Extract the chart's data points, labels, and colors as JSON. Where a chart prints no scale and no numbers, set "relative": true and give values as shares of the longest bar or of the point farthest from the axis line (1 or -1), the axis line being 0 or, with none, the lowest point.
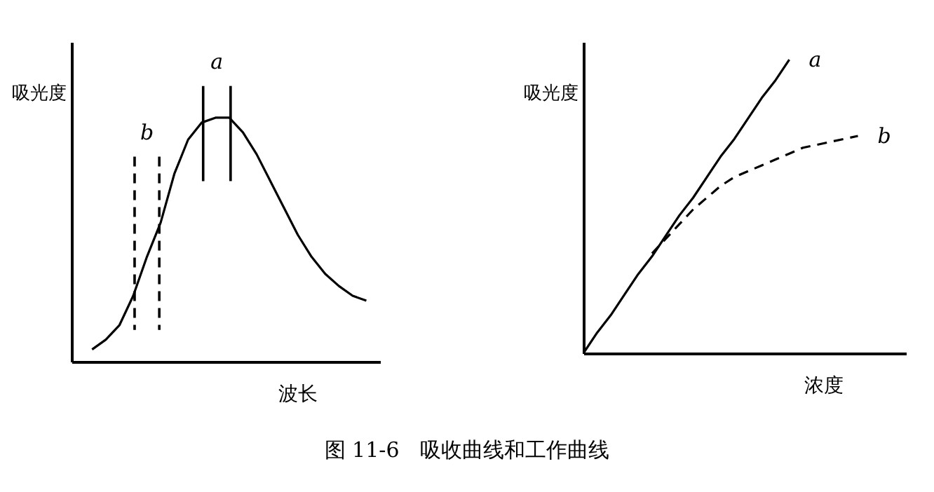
{
  "chart_data": [
    {
      "type": "line",
      "relative": true,
      "tick_labels": false,
      "xlabel": "波长",
      "ylabel": "吸光度",
      "grid": false,
      "categories": [
        null,
        null,
        null,
        null,
        null,
        null,
        null,
        null,
        null,
        null,
        null,
        null,
        null,
        null,
        null,
        null,
        null,
        null,
        null,
        null,
        null
      ],
      "values": [
        0.05,
        0.09,
        0.15,
        0.27,
        0.43,
        0.57,
        0.77,
        0.91,
        0.98,
        1.0,
        1.0,
        0.94,
        0.85,
        0.74,
        0.63,
        0.52,
        0.43,
        0.36,
        0.31,
        0.27,
        0.25
      ],
      "color": "#000000",
      "annotations": [
        "a",
        "b",
        "图 11-6　吸收曲线和工作曲线"
      ]
    },
    {
      "type": "line",
      "relative": true,
      "tick_labels": false,
      "xlabel": "浓度",
      "ylabel": "吸光度",
      "grid": false,
      "categories": [
        null,
        null,
        null,
        null,
        null,
        null,
        null,
        null,
        null,
        null,
        null,
        null,
        null,
        null,
        null,
        null,
        null,
        null,
        null,
        null,
        null
      ],
      "series": [
        {
          "name": "a",
          "color": "#000000",
          "line_style": "solid",
          "values": [
            0,
            0.07,
            0.13,
            0.2,
            0.27,
            0.33,
            0.4,
            0.47,
            0.53,
            0.6,
            0.67,
            0.73,
            0.8,
            0.87,
            0.93,
            1.0,
            null,
            null,
            null,
            null,
            null
          ]
        },
        {
          "name": "b",
          "color": "#000000",
          "line_style": "dashed",
          "values": [
            null,
            null,
            null,
            null,
            null,
            0.34,
            0.39,
            0.44,
            0.49,
            0.53,
            0.57,
            0.6,
            0.62,
            0.64,
            0.66,
            0.68,
            0.7,
            0.71,
            0.72,
            0.73,
            0.74
          ]
        }
      ]
    }
  ]
}
